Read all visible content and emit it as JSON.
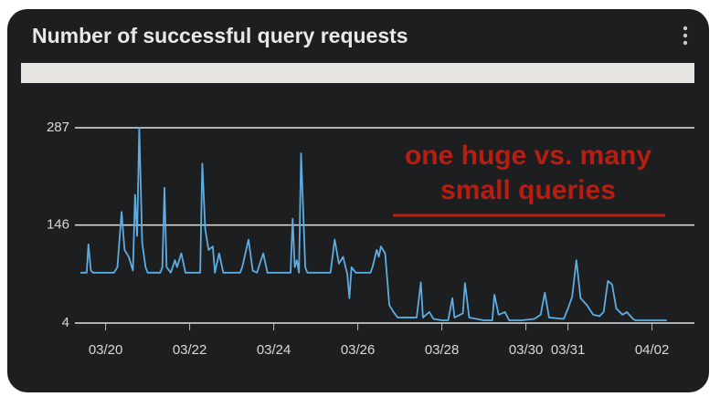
{
  "title": "Number of successful query requests",
  "annotation": [
    "one huge vs. many",
    "small queries"
  ],
  "chart_data": {
    "type": "line",
    "x": [
      -0.6,
      -0.45,
      -0.41,
      -0.35,
      -0.3,
      0.2,
      0.28,
      0.38,
      0.45,
      0.55,
      0.65,
      0.7,
      0.75,
      0.8,
      0.87,
      0.95,
      1.0,
      1.3,
      1.35,
      1.4,
      1.45,
      1.55,
      1.65,
      1.7,
      1.8,
      1.9,
      2.25,
      2.3,
      2.37,
      2.45,
      2.55,
      2.6,
      2.7,
      2.8,
      3.2,
      3.25,
      3.4,
      3.5,
      3.6,
      3.75,
      3.85,
      4.4,
      4.45,
      4.5,
      4.55,
      4.6,
      4.65,
      4.75,
      4.8,
      5.35,
      5.45,
      5.55,
      5.65,
      5.75,
      5.8,
      5.85,
      5.95,
      6.3,
      6.35,
      6.45,
      6.5,
      6.55,
      6.65,
      6.75,
      6.85,
      6.95,
      7.4,
      7.5,
      7.55,
      7.7,
      7.8,
      8.0,
      8.15,
      8.25,
      8.3,
      8.5,
      8.55,
      8.65,
      9.0,
      9.2,
      9.25,
      9.35,
      9.5,
      9.6,
      9.9,
      10.2,
      10.35,
      10.45,
      10.55,
      10.9,
      11.0,
      11.1,
      11.2,
      11.3,
      11.45,
      11.6,
      11.75,
      11.85,
      11.95,
      12.05,
      12.15,
      12.3,
      12.4,
      12.55,
      12.6,
      13.35
    ],
    "series": [
      {
        "color": "#5dade2",
        "values": [
          77,
          77,
          118,
          80,
          77,
          77,
          85,
          165,
          110,
          100,
          80,
          190,
          130,
          287,
          120,
          85,
          77,
          77,
          85,
          200,
          85,
          77,
          95,
          85,
          105,
          77,
          77,
          235,
          140,
          110,
          115,
          77,
          105,
          77,
          77,
          85,
          125,
          80,
          77,
          105,
          77,
          77,
          155,
          85,
          95,
          77,
          250,
          85,
          77,
          77,
          125,
          90,
          100,
          75,
          40,
          85,
          77,
          77,
          85,
          110,
          100,
          115,
          105,
          30,
          20,
          12,
          12,
          63,
          12,
          20,
          10,
          8,
          8,
          40,
          12,
          18,
          62,
          12,
          8,
          8,
          45,
          16,
          20,
          8,
          8,
          10,
          16,
          48,
          12,
          10,
          25,
          42,
          95,
          40,
          30,
          16,
          14,
          20,
          65,
          60,
          25,
          16,
          20,
          10,
          8,
          8
        ]
      }
    ],
    "xlim": [
      -0.6,
      13.4
    ],
    "xticks": [
      {
        "value": 0,
        "label": "03/20"
      },
      {
        "value": 2,
        "label": "03/22"
      },
      {
        "value": 4,
        "label": "03/24"
      },
      {
        "value": 6,
        "label": "03/26"
      },
      {
        "value": 8,
        "label": "03/28"
      },
      {
        "value": 10,
        "label": "03/30"
      },
      {
        "value": 11,
        "label": "03/31"
      },
      {
        "value": 13,
        "label": "04/02"
      }
    ],
    "ylim": [
      4,
      287
    ],
    "yticks": [
      4,
      146,
      287
    ],
    "grid": true
  }
}
